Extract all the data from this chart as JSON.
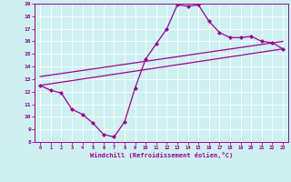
{
  "xlabel": "Windchill (Refroidissement éolien,°C)",
  "ylabel": "",
  "bg_color": "#cef0f0",
  "line_color": "#990099",
  "grid_color": "#ffffff",
  "xlim": [
    -0.5,
    23.5
  ],
  "ylim": [
    8,
    19
  ],
  "xticks": [
    0,
    1,
    2,
    3,
    4,
    5,
    6,
    7,
    8,
    9,
    10,
    11,
    12,
    13,
    14,
    15,
    16,
    17,
    18,
    19,
    20,
    21,
    22,
    23
  ],
  "yticks": [
    8,
    9,
    10,
    11,
    12,
    13,
    14,
    15,
    16,
    17,
    18,
    19
  ],
  "line1_x": [
    0,
    1,
    2,
    3,
    4,
    5,
    6,
    7,
    8,
    9,
    10,
    11,
    12,
    13,
    14,
    15,
    16,
    17,
    18,
    19,
    20,
    21,
    22,
    23
  ],
  "line1_y": [
    12.5,
    12.1,
    11.9,
    10.6,
    10.2,
    9.5,
    8.6,
    8.4,
    9.6,
    12.3,
    14.6,
    15.8,
    17.0,
    18.9,
    18.8,
    18.9,
    17.6,
    16.7,
    16.3,
    16.3,
    16.4,
    16.0,
    15.9,
    15.4
  ],
  "line2_x": [
    0,
    23
  ],
  "line2_y": [
    12.5,
    15.4
  ],
  "line3_x": [
    0,
    23
  ],
  "line3_y": [
    13.2,
    16.0
  ],
  "figsize": [
    3.2,
    2.0
  ],
  "dpi": 100
}
